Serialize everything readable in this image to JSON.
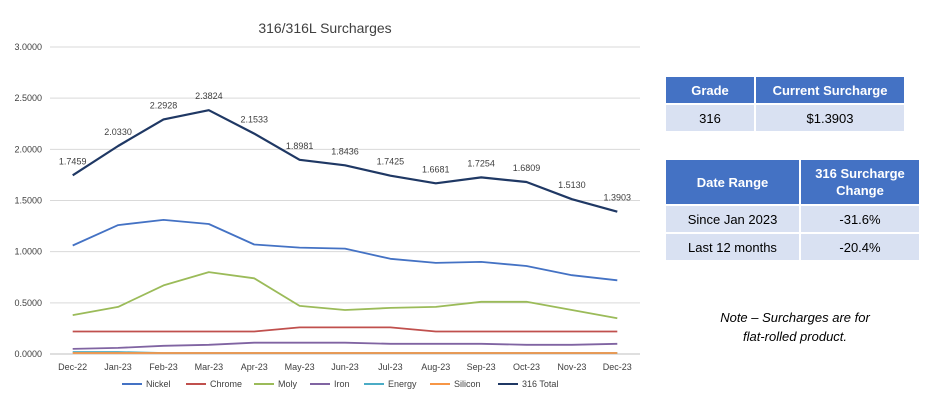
{
  "chart_data": {
    "type": "line",
    "title": "316/316L Surcharges",
    "categories": [
      "Dec-22",
      "Jan-23",
      "Feb-23",
      "Mar-23",
      "Apr-23",
      "May-23",
      "Jun-23",
      "Jul-23",
      "Aug-23",
      "Sep-23",
      "Oct-23",
      "Nov-23",
      "Dec-23"
    ],
    "ylim": [
      0,
      3
    ],
    "yticks": [
      "0.0000",
      "0.5000",
      "1.0000",
      "1.5000",
      "2.0000",
      "2.5000",
      "3.0000"
    ],
    "grid": true,
    "legend_position": "bottom",
    "series": [
      {
        "name": "Nickel",
        "color": "#4472C4",
        "values": [
          1.06,
          1.26,
          1.31,
          1.27,
          1.07,
          1.04,
          1.03,
          0.93,
          0.89,
          0.9,
          0.86,
          0.77,
          0.72
        ]
      },
      {
        "name": "Chrome",
        "color": "#C0504D",
        "values": [
          0.22,
          0.22,
          0.22,
          0.22,
          0.22,
          0.26,
          0.26,
          0.26,
          0.22,
          0.22,
          0.22,
          0.22,
          0.22
        ]
      },
      {
        "name": "Moly",
        "color": "#9BBB59",
        "values": [
          0.38,
          0.46,
          0.67,
          0.8,
          0.74,
          0.47,
          0.43,
          0.45,
          0.46,
          0.51,
          0.51,
          0.43,
          0.35
        ]
      },
      {
        "name": "Iron",
        "color": "#8064A2",
        "values": [
          0.05,
          0.06,
          0.08,
          0.09,
          0.11,
          0.11,
          0.11,
          0.1,
          0.1,
          0.1,
          0.09,
          0.09,
          0.1
        ]
      },
      {
        "name": "Energy",
        "color": "#4BACC6",
        "values": [
          0.02,
          0.02,
          0.01,
          0.01,
          0.01,
          0.01,
          0.01,
          0.01,
          0.01,
          0.01,
          0.01,
          0.01,
          0.01
        ]
      },
      {
        "name": "Silicon",
        "color": "#F79646",
        "values": [
          0.01,
          0.01,
          0.01,
          0.01,
          0.01,
          0.01,
          0.01,
          0.01,
          0.01,
          0.01,
          0.01,
          0.01,
          0.01
        ]
      },
      {
        "name": "316 Total",
        "color": "#1F3864",
        "values": [
          1.7459,
          2.033,
          2.2928,
          2.3824,
          2.1533,
          1.8981,
          1.8436,
          1.7425,
          1.6681,
          1.7254,
          1.6809,
          1.513,
          1.3903
        ],
        "labels": [
          "1.7459",
          "2.0330",
          "2.2928",
          "2.3824",
          "2.1533",
          "1.8981",
          "1.8436",
          "1.7425",
          "1.6681",
          "1.7254",
          "1.6809",
          "1.5130",
          "1.3903"
        ]
      }
    ]
  },
  "grade_table": {
    "header_grade": "Grade",
    "header_surcharge": "Current Surcharge",
    "grade": "316",
    "surcharge": "$1.3903"
  },
  "change_table": {
    "header_range": "Date Range",
    "header_change": "316 Surcharge Change",
    "rows": [
      {
        "range": "Since Jan 2023",
        "change": "-31.6%"
      },
      {
        "range": "Last 12 months",
        "change": "-20.4%"
      }
    ]
  },
  "note": {
    "line1": "Note – Surcharges are for",
    "line2": "flat-rolled product."
  }
}
